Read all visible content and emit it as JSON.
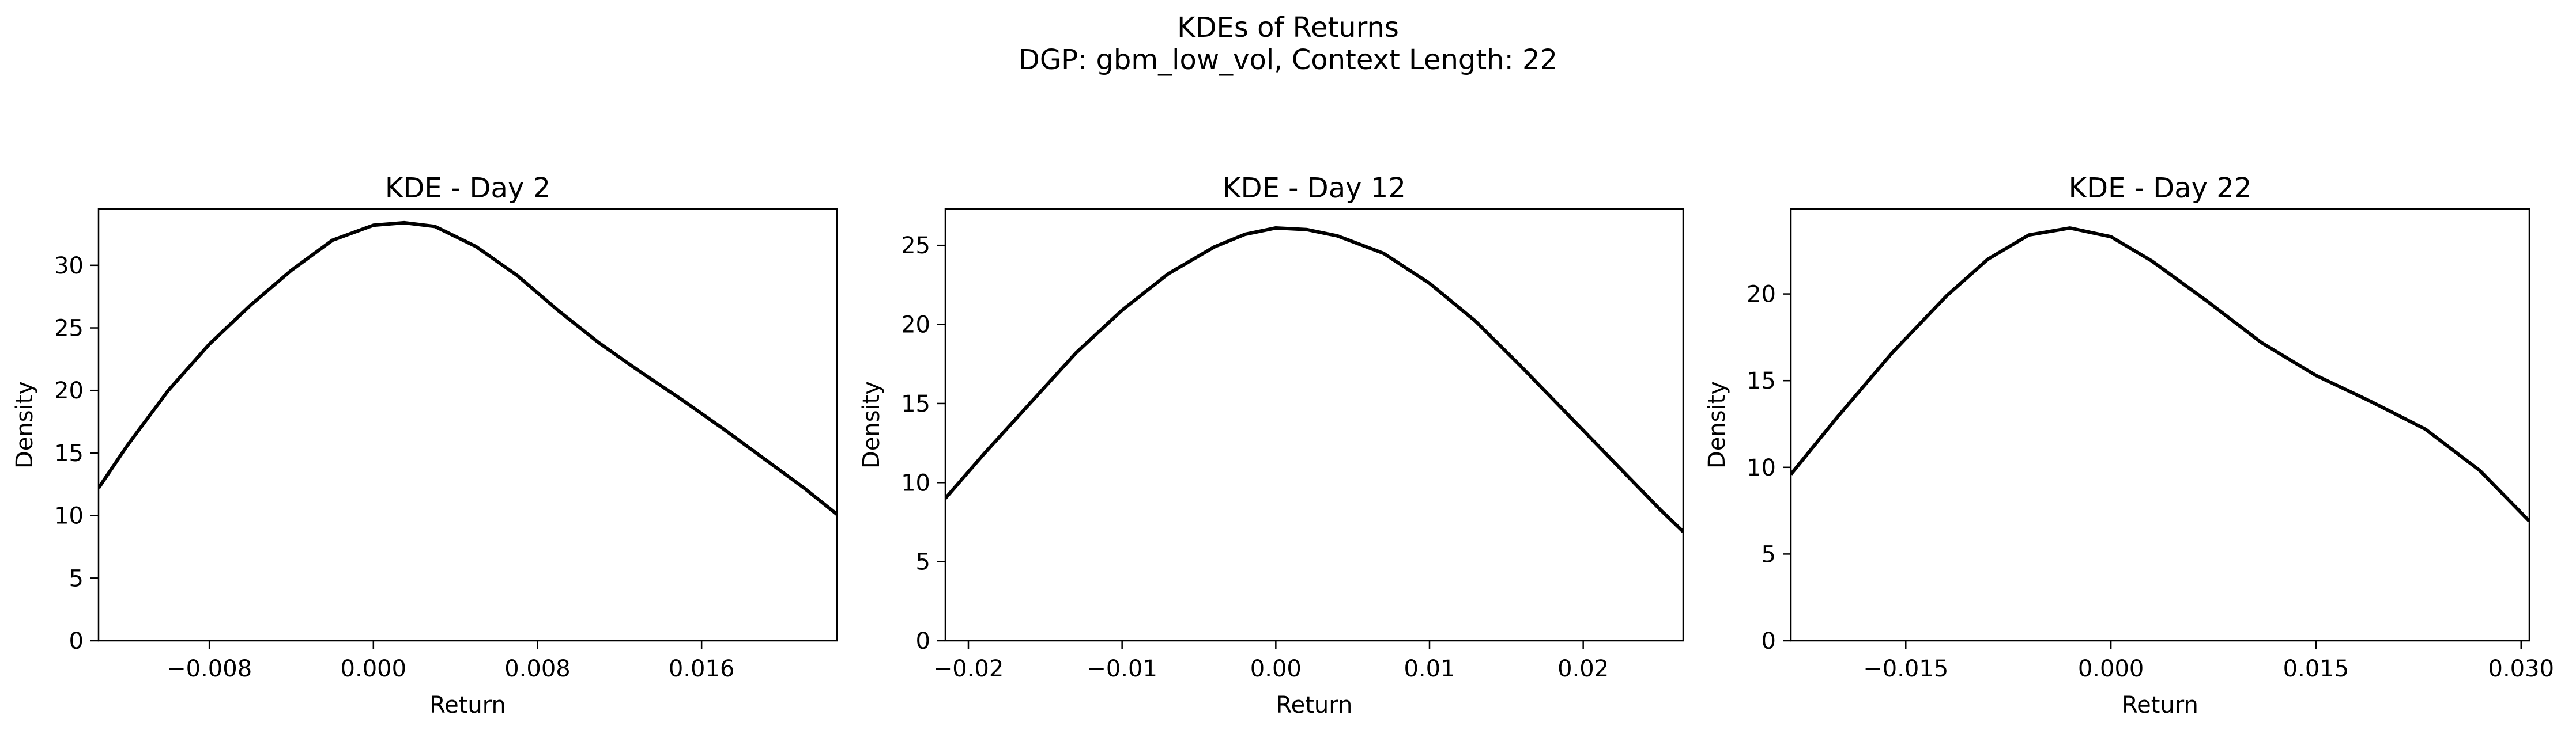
{
  "suptitle": {
    "line1": "KDEs of Returns",
    "line2": "DGP: gbm_low_vol, Context Length: 22"
  },
  "chart_data": [
    {
      "type": "line",
      "title": "KDE - Day 2",
      "xlabel": "Return",
      "ylabel": "Density",
      "xlim": [
        -0.0134,
        0.0226
      ],
      "ylim": [
        0,
        34.5
      ],
      "xticks": [
        -0.008,
        0.0,
        0.008,
        0.016
      ],
      "xtick_labels": [
        "−0.008",
        "0.000",
        "0.008",
        "0.016"
      ],
      "yticks": [
        0,
        5,
        10,
        15,
        20,
        25,
        30
      ],
      "ytick_labels": [
        "0",
        "5",
        "10",
        "15",
        "20",
        "25",
        "30"
      ],
      "grid": false,
      "color": "#000000",
      "series": [
        {
          "x": [
            -0.0134,
            -0.012,
            -0.01,
            -0.008,
            -0.006,
            -0.004,
            -0.002,
            0.0,
            0.0015,
            0.003,
            0.005,
            0.007,
            0.009,
            0.011,
            0.013,
            0.015,
            0.017,
            0.019,
            0.021,
            0.0226
          ],
          "y": [
            12.2,
            15.6,
            20.0,
            23.7,
            26.8,
            29.6,
            32.0,
            33.2,
            33.4,
            33.1,
            31.5,
            29.2,
            26.4,
            23.8,
            21.5,
            19.3,
            17.0,
            14.6,
            12.2,
            10.1
          ]
        }
      ]
    },
    {
      "type": "line",
      "title": "KDE - Day 12",
      "xlabel": "Return",
      "ylabel": "Density",
      "xlim": [
        -0.0215,
        0.0265
      ],
      "ylim": [
        0,
        27.3
      ],
      "xticks": [
        -0.02,
        -0.01,
        0.0,
        0.01,
        0.02
      ],
      "xtick_labels": [
        "−0.02",
        "−0.01",
        "0.00",
        "0.01",
        "0.02"
      ],
      "yticks": [
        0,
        5,
        10,
        15,
        20,
        25
      ],
      "ytick_labels": [
        "0",
        "5",
        "10",
        "15",
        "20",
        "25"
      ],
      "grid": false,
      "color": "#000000",
      "series": [
        {
          "x": [
            -0.0215,
            -0.019,
            -0.016,
            -0.013,
            -0.01,
            -0.007,
            -0.004,
            -0.002,
            0.0,
            0.002,
            0.004,
            0.007,
            0.01,
            0.013,
            0.016,
            0.019,
            0.022,
            0.025,
            0.0265
          ],
          "y": [
            9.0,
            11.8,
            15.0,
            18.2,
            20.9,
            23.2,
            24.9,
            25.7,
            26.1,
            26.0,
            25.6,
            24.5,
            22.6,
            20.2,
            17.3,
            14.3,
            11.3,
            8.3,
            6.9
          ]
        }
      ]
    },
    {
      "type": "line",
      "title": "KDE - Day 22",
      "xlabel": "Return",
      "ylabel": "Density",
      "xlim": [
        -0.0234,
        0.0306
      ],
      "ylim": [
        0,
        24.9
      ],
      "xticks": [
        -0.015,
        0.0,
        0.015,
        0.03
      ],
      "xtick_labels": [
        "−0.015",
        "0.000",
        "0.015",
        "0.030"
      ],
      "yticks": [
        0,
        5,
        10,
        15,
        20
      ],
      "ytick_labels": [
        "0",
        "5",
        "10",
        "15",
        "20"
      ],
      "grid": false,
      "color": "#000000",
      "series": [
        {
          "x": [
            -0.0234,
            -0.02,
            -0.016,
            -0.012,
            -0.009,
            -0.006,
            -0.003,
            0.0,
            0.003,
            0.007,
            0.011,
            0.015,
            0.019,
            0.023,
            0.027,
            0.0306
          ],
          "y": [
            9.6,
            12.9,
            16.6,
            19.9,
            22.0,
            23.4,
            23.8,
            23.3,
            21.9,
            19.6,
            17.2,
            15.3,
            13.8,
            12.2,
            9.8,
            6.9
          ]
        }
      ]
    }
  ]
}
